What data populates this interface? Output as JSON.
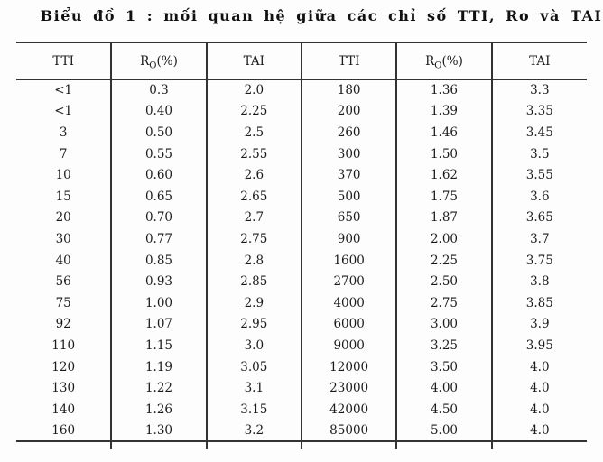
{
  "page": {
    "title": "Biểu đồ 1 : mối quan hệ giữa các chỉ số TTI, Ro và TAI"
  },
  "table": {
    "column_headers": [
      {
        "base": "TTI",
        "sub": "",
        "suffix": ""
      },
      {
        "base": "R",
        "sub": "O",
        "suffix": "(%)"
      },
      {
        "base": "TAI",
        "sub": "",
        "suffix": ""
      },
      {
        "base": "TTI",
        "sub": "",
        "suffix": ""
      },
      {
        "base": "R",
        "sub": "O",
        "suffix": "(%)"
      },
      {
        "base": "TAI",
        "sub": "",
        "suffix": ""
      }
    ],
    "rows": [
      [
        "<1",
        "0.3",
        "2.0",
        "180",
        "1.36",
        "3.3"
      ],
      [
        "<1",
        "0.40",
        "2.25",
        "200",
        "1.39",
        "3.35"
      ],
      [
        "3",
        "0.50",
        "2.5",
        "260",
        "1.46",
        "3.45"
      ],
      [
        "7",
        "0.55",
        "2.55",
        "300",
        "1.50",
        "3.5"
      ],
      [
        "10",
        "0.60",
        "2.6",
        "370",
        "1.62",
        "3.55"
      ],
      [
        "15",
        "0.65",
        "2.65",
        "500",
        "1.75",
        "3.6"
      ],
      [
        "20",
        "0.70",
        "2.7",
        "650",
        "1.87",
        "3.65"
      ],
      [
        "30",
        "0.77",
        "2.75",
        "900",
        "2.00",
        "3.7"
      ],
      [
        "40",
        "0.85",
        "2.8",
        "1600",
        "2.25",
        "3.75"
      ],
      [
        "56",
        "0.93",
        "2.85",
        "2700",
        "2.50",
        "3.8"
      ],
      [
        "75",
        "1.00",
        "2.9",
        "4000",
        "2.75",
        "3.85"
      ],
      [
        "92",
        "1.07",
        "2.95",
        "6000",
        "3.00",
        "3.9"
      ],
      [
        "110",
        "1.15",
        "3.0",
        "9000",
        "3.25",
        "3.95"
      ],
      [
        "120",
        "1.19",
        "3.05",
        "12000",
        "3.50",
        "4.0"
      ],
      [
        "130",
        "1.22",
        "3.1",
        "23000",
        "4.00",
        "4.0"
      ],
      [
        "140",
        "1.26",
        "3.15",
        "42000",
        "4.50",
        "4.0"
      ],
      [
        "160",
        "1.30",
        "3.2",
        "85000",
        "5.00",
        "4.0"
      ]
    ]
  },
  "colors": {
    "text": "#1a1a1a",
    "rule": "#333333",
    "background": "#fdfdfd"
  }
}
